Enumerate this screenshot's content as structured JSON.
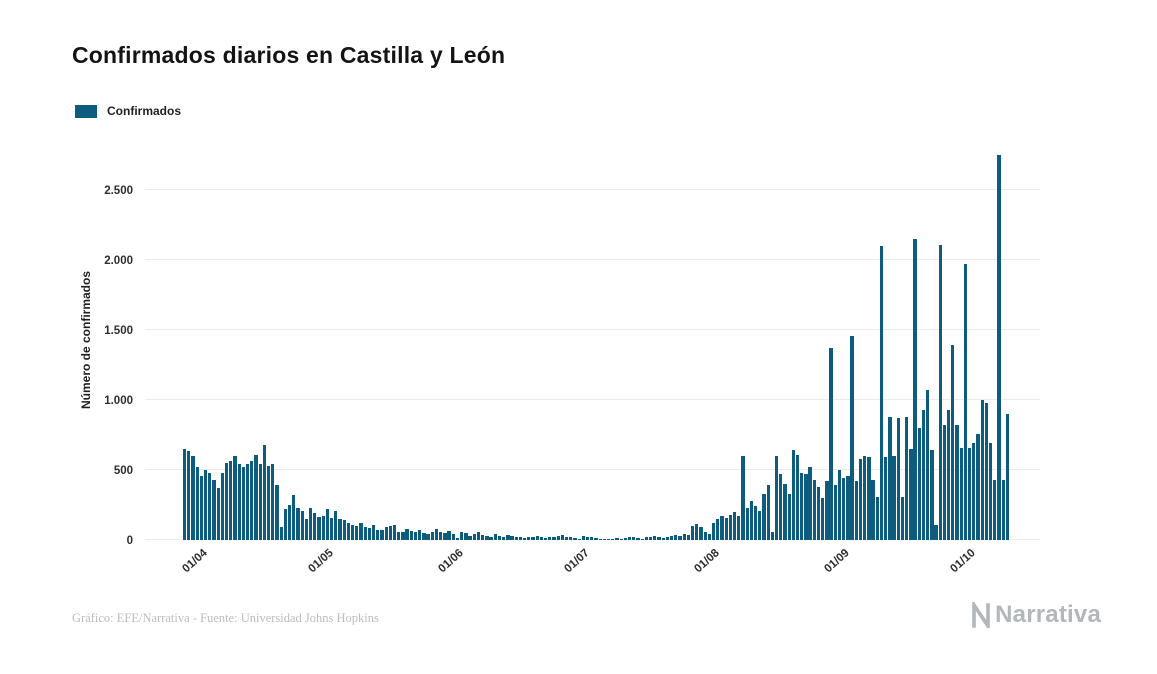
{
  "page": {
    "title": "Confirmados diarios en Castilla y León"
  },
  "legend": {
    "label": "Confirmados"
  },
  "footer": {
    "credit": "Gráfico: EFE/Narrativa - Fuente: Universidad Johns Hopkins",
    "brand": "Narrativa"
  },
  "chart_data": {
    "type": "bar",
    "title": "Confirmados diarios en Castilla y León",
    "xlabel": "",
    "ylabel": "Número de confirmados",
    "legend_entries": [
      "Confirmados"
    ],
    "legend_position": "top-left",
    "grid": true,
    "bar_color": "#0d5c7d",
    "grid_color": "#eaeaea",
    "x_unit": "day",
    "ylim": [
      0,
      2860
    ],
    "yticks": [
      0,
      500,
      1000,
      1500,
      2000,
      2500
    ],
    "ytick_labels": [
      "0",
      "500",
      "1.000",
      "1.500",
      "2.000",
      "2.500"
    ],
    "xticks": [
      {
        "label": "01/04",
        "index": 4
      },
      {
        "label": "01/05",
        "index": 34
      },
      {
        "label": "01/06",
        "index": 65
      },
      {
        "label": "01/07",
        "index": 95
      },
      {
        "label": "01/08",
        "index": 126
      },
      {
        "label": "01/09",
        "index": 157
      },
      {
        "label": "01/10",
        "index": 187
      }
    ],
    "values": [
      650,
      635,
      600,
      520,
      455,
      500,
      480,
      430,
      370,
      480,
      550,
      565,
      600,
      540,
      520,
      545,
      565,
      610,
      545,
      680,
      530,
      545,
      390,
      90,
      220,
      250,
      320,
      230,
      205,
      150,
      230,
      195,
      165,
      175,
      225,
      160,
      210,
      150,
      140,
      120,
      110,
      100,
      120,
      95,
      85,
      110,
      75,
      70,
      90,
      100,
      110,
      60,
      55,
      80,
      65,
      55,
      70,
      50,
      45,
      60,
      80,
      55,
      50,
      65,
      45,
      15,
      60,
      50,
      30,
      45,
      55,
      35,
      30,
      25,
      40,
      30,
      25,
      35,
      30,
      20,
      25,
      15,
      20,
      25,
      30,
      20,
      15,
      25,
      20,
      30,
      35,
      25,
      20,
      15,
      10,
      30,
      25,
      20,
      15,
      10,
      8,
      5,
      8,
      12,
      10,
      15,
      20,
      25,
      15,
      10,
      20,
      25,
      30,
      20,
      15,
      25,
      30,
      35,
      30,
      40,
      35,
      100,
      115,
      90,
      60,
      45,
      120,
      150,
      175,
      160,
      180,
      200,
      170,
      600,
      230,
      280,
      240,
      210,
      330,
      390,
      60,
      600,
      470,
      400,
      330,
      640,
      610,
      480,
      470,
      520,
      430,
      380,
      300,
      420,
      1370,
      390,
      500,
      440,
      460,
      1460,
      420,
      580,
      600,
      590,
      430,
      310,
      2100,
      590,
      880,
      600,
      870,
      310,
      880,
      650,
      2150,
      800,
      930,
      1070,
      640,
      110,
      2110,
      820,
      930,
      1390,
      820,
      660,
      1970,
      660,
      690,
      760,
      1000,
      980,
      690,
      430,
      2750,
      430,
      900
    ]
  }
}
